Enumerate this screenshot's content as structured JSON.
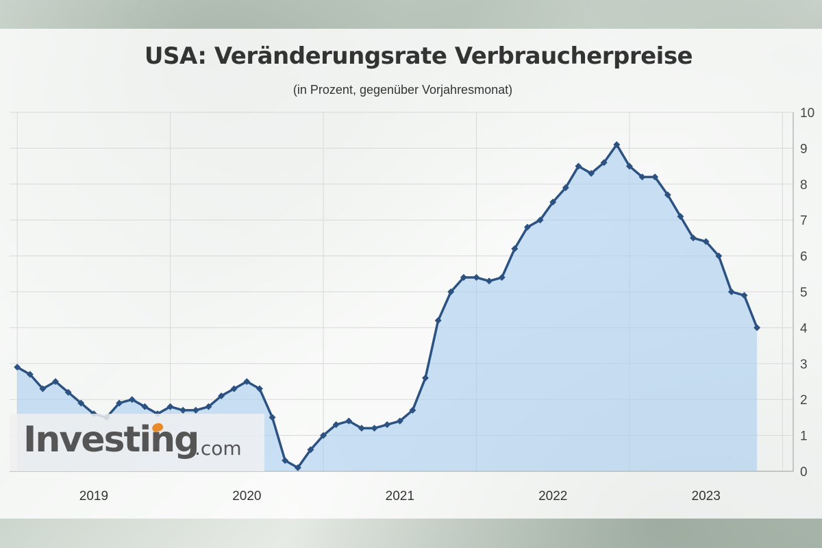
{
  "title": "USA: Veränderungsrate Verbraucherpreise",
  "subtitle": "(in Prozent, gegenüber Vorjahresmonat)",
  "logo": {
    "main": "Investing",
    "suffix": ".com"
  },
  "colors": {
    "line": "#2c5282",
    "fill": "#a9cdf0",
    "grid": "#d8d8d8"
  },
  "chart_data": {
    "type": "area",
    "ylim": [
      0,
      10
    ],
    "y_ticks": [
      0,
      1,
      2,
      3,
      4,
      5,
      6,
      7,
      8,
      9,
      10
    ],
    "x_tick_labels": [
      {
        "label": "2019",
        "x": 2019.0
      },
      {
        "label": "2020",
        "x": 2020.0
      },
      {
        "label": "2021",
        "x": 2021.0
      },
      {
        "label": "2022",
        "x": 2022.0
      },
      {
        "label": "2023",
        "x": 2023.0
      }
    ],
    "xlim": [
      2018.45,
      2023.57
    ],
    "axis_position": "right",
    "grid": true,
    "series": [
      {
        "x_start": "2018-07",
        "values": [
          2.9,
          2.7,
          2.3,
          2.5,
          2.2,
          1.9,
          1.6,
          1.5,
          1.9,
          2.0,
          1.8,
          1.6,
          1.8,
          1.7,
          1.7,
          1.8,
          2.1,
          2.3,
          2.5,
          2.3,
          1.5,
          0.3,
          0.1,
          0.6,
          1.0,
          1.3,
          1.4,
          1.2,
          1.2,
          1.3,
          1.4,
          1.7,
          2.6,
          4.2,
          5.0,
          5.4,
          5.4,
          5.3,
          5.4,
          6.2,
          6.8,
          7.0,
          7.5,
          7.9,
          8.5,
          8.3,
          8.6,
          9.1,
          8.5,
          8.2,
          8.2,
          7.7,
          7.1,
          6.5,
          6.4,
          6.0,
          5.0,
          4.9,
          4.0
        ]
      }
    ]
  }
}
